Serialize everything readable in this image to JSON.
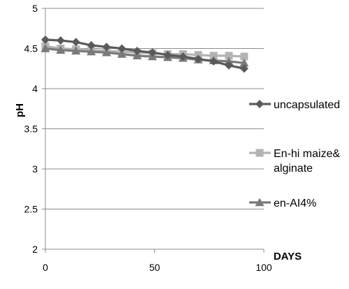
{
  "chart_data": {
    "type": "line",
    "title": "",
    "xlabel": "DAYS",
    "ylabel": "pH",
    "xlim": [
      0,
      100
    ],
    "ylim": [
      2,
      5
    ],
    "x_ticks": [
      0,
      50,
      100
    ],
    "y_ticks": [
      2,
      2.5,
      3,
      3.5,
      4,
      4.5,
      5
    ],
    "grid": "horizontal",
    "legend_position": "right",
    "series": [
      {
        "name": "uncapsulated",
        "color": "#5a5a5a",
        "marker": "diamond",
        "x": [
          0,
          7,
          14,
          21,
          28,
          35,
          42,
          49,
          56,
          63,
          70,
          77,
          84,
          91
        ],
        "y": [
          4.61,
          4.6,
          4.58,
          4.54,
          4.52,
          4.5,
          4.47,
          4.45,
          4.42,
          4.4,
          4.37,
          4.34,
          4.29,
          4.25
        ]
      },
      {
        "name": "En-hi maize& alginate",
        "color": "#b3b3b3",
        "marker": "square",
        "x": [
          0,
          7,
          14,
          21,
          28,
          35,
          42,
          49,
          56,
          63,
          70,
          77,
          84,
          91
        ],
        "y": [
          4.53,
          4.5,
          4.49,
          4.48,
          4.47,
          4.46,
          4.45,
          4.44,
          4.43,
          4.43,
          4.42,
          4.41,
          4.41,
          4.4
        ]
      },
      {
        "name": "en-AI4%",
        "color": "#7a7a7a",
        "marker": "triangle",
        "x": [
          0,
          7,
          14,
          21,
          28,
          35,
          42,
          49,
          56,
          63,
          70,
          77,
          84,
          91
        ],
        "y": [
          4.5,
          4.48,
          4.47,
          4.46,
          4.45,
          4.43,
          4.41,
          4.4,
          4.39,
          4.38,
          4.36,
          4.35,
          4.34,
          4.32
        ]
      }
    ]
  }
}
